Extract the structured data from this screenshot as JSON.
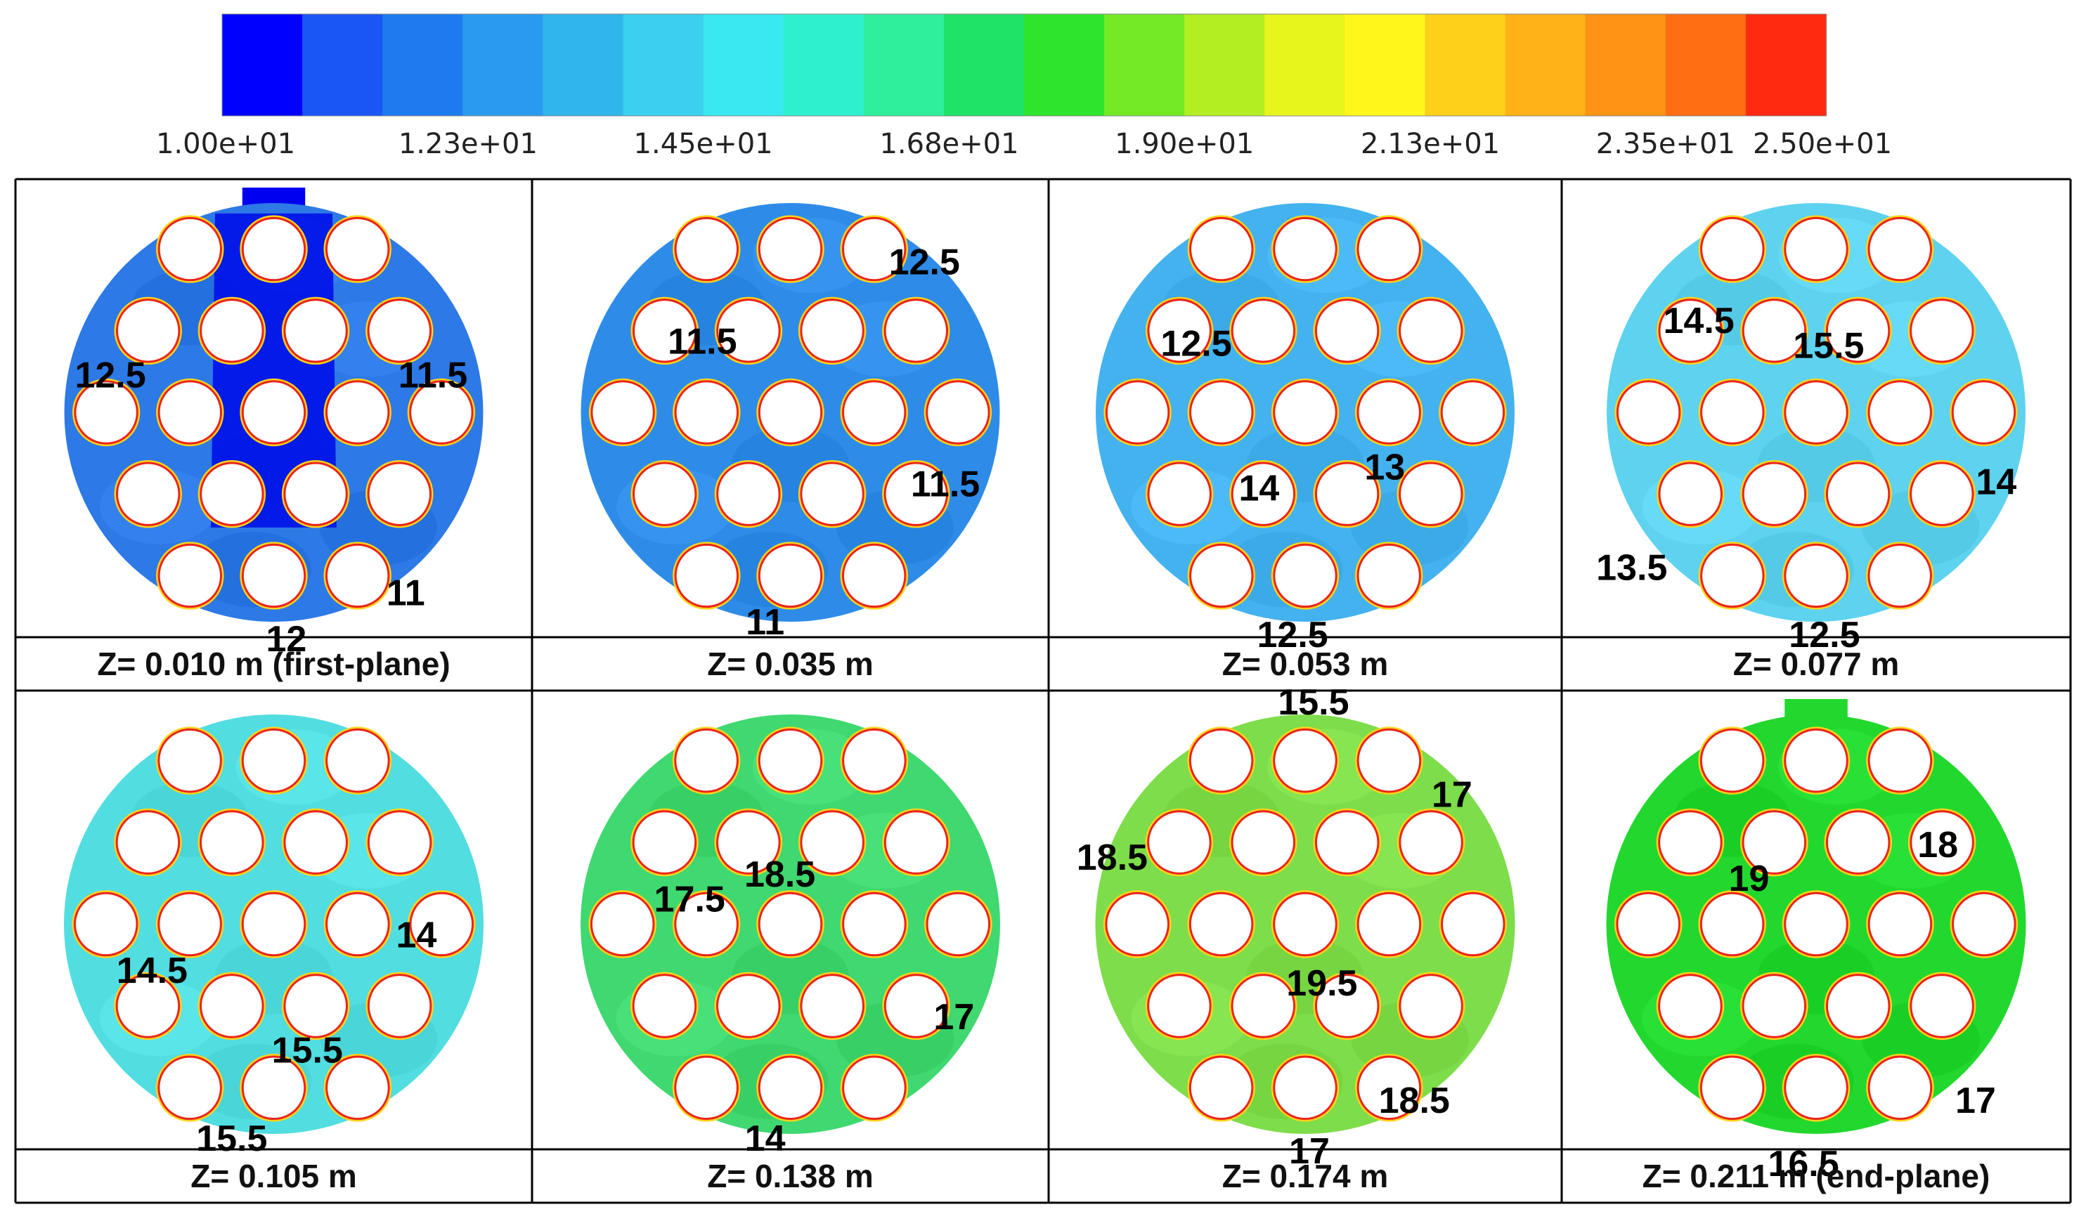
{
  "colorbar": {
    "min": 10,
    "max": 25,
    "colors": [
      "#0000ff",
      "#1a55f5",
      "#1f7aef",
      "#2a9af0",
      "#31b6ec",
      "#3ad0ee",
      "#39e8f0",
      "#2ef0cf",
      "#2fef9c",
      "#1fe366",
      "#2ee42c",
      "#74ea26",
      "#b3ee22",
      "#e8f51d",
      "#fff71b",
      "#ffd01a",
      "#ffb217",
      "#ff9316",
      "#ff6e12",
      "#ff2a10"
    ],
    "tick_labels": [
      "1.00e+01",
      "1.23e+01",
      "1.45e+01",
      "1.68e+01",
      "1.90e+01",
      "2.13e+01",
      "2.35e+01",
      "2.50e+01"
    ],
    "tick_values": [
      10,
      12.3,
      14.5,
      16.8,
      19.0,
      21.3,
      23.5,
      25.0
    ]
  },
  "panels": [
    {
      "caption": "Z= 0.010 m (first-plane)",
      "bg": "#2d79e6",
      "stub": true,
      "labels": [
        "12.5",
        "11.5",
        "11",
        "12"
      ]
    },
    {
      "caption": "Z= 0.035 m",
      "bg": "#2e8ce8",
      "stub": false,
      "labels": [
        "12.5",
        "11.5",
        "11.5",
        "11"
      ]
    },
    {
      "caption": "Z= 0.053 m",
      "bg": "#44b2ee",
      "stub": false,
      "labels": [
        "12.5",
        "14",
        "13",
        "12.5"
      ]
    },
    {
      "caption": "Z= 0.077 m",
      "bg": "#5ed2ef",
      "stub": false,
      "labels": [
        "14.5",
        "15.5",
        "14",
        "13.5",
        "12.5"
      ]
    },
    {
      "caption": "Z= 0.105 m",
      "bg": "#52dde0",
      "stub": false,
      "labels": [
        "14.5",
        "14",
        "15.5",
        "15.5"
      ]
    },
    {
      "caption": "Z= 0.138 m",
      "bg": "#40d870",
      "stub": false,
      "labels": [
        "18.5",
        "17.5",
        "17",
        "14"
      ]
    },
    {
      "caption": "Z= 0.174 m",
      "bg": "#7edd4a",
      "stub": false,
      "labels": [
        "15.5",
        "17",
        "18.5",
        "19.5",
        "18.5",
        "17"
      ]
    },
    {
      "caption": "Z= 0.211 m (end-plane)",
      "bg": "#22d82e",
      "stub": true,
      "labels": [
        "18",
        "19",
        "17",
        "16.5"
      ]
    }
  ]
}
